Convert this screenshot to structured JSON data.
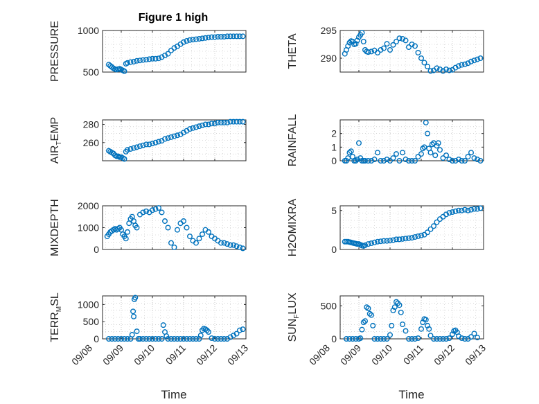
{
  "figure_title": "Figure 1 high",
  "x_axis": {
    "label": "Time",
    "tick_labels": [
      "09/08",
      "09/09",
      "09/10",
      "09/11",
      "09/12",
      "09/13"
    ]
  },
  "colors": {
    "marker": "#0072BD",
    "axis": "#262626",
    "grid": "#b9b9b9"
  },
  "chart_data": [
    {
      "type": "scatter",
      "name": "PRESSURE",
      "ylabel": "PRESSURE",
      "xlim": [
        0.4,
        5.0
      ],
      "ylim": [
        500,
        1000
      ],
      "yticks": [
        500,
        1000
      ],
      "x": [
        0.6,
        0.65,
        0.7,
        0.75,
        0.8,
        0.85,
        0.9,
        0.95,
        1.0,
        1.05,
        1.1,
        1.15,
        1.2,
        1.3,
        1.4,
        1.5,
        1.6,
        1.7,
        1.8,
        1.9,
        2.0,
        2.1,
        2.2,
        2.3,
        2.4,
        2.5,
        2.6,
        2.7,
        2.8,
        2.9,
        3.0,
        3.1,
        3.2,
        3.3,
        3.4,
        3.5,
        3.6,
        3.7,
        3.8,
        3.9,
        4.0,
        4.1,
        4.2,
        4.3,
        4.4,
        4.5,
        4.6,
        4.7,
        4.8,
        4.9
      ],
      "y": [
        590,
        575,
        560,
        545,
        535,
        530,
        535,
        540,
        530,
        520,
        510,
        600,
        610,
        620,
        625,
        635,
        640,
        645,
        650,
        655,
        660,
        660,
        665,
        680,
        700,
        720,
        760,
        790,
        810,
        835,
        860,
        875,
        885,
        890,
        895,
        900,
        905,
        910,
        915,
        920,
        920,
        925,
        925,
        925,
        930,
        930,
        930,
        930,
        930,
        930
      ]
    },
    {
      "type": "scatter",
      "name": "THETA",
      "ylabel": "THETA",
      "xlim": [
        0.4,
        5.0
      ],
      "ylim": [
        287.5,
        295
      ],
      "yticks": [
        290,
        295
      ],
      "x": [
        0.55,
        0.6,
        0.65,
        0.7,
        0.75,
        0.8,
        0.85,
        0.9,
        0.95,
        1.0,
        1.05,
        1.1,
        1.15,
        1.2,
        1.25,
        1.3,
        1.4,
        1.5,
        1.6,
        1.7,
        1.8,
        1.9,
        2.0,
        2.1,
        2.2,
        2.3,
        2.4,
        2.5,
        2.6,
        2.7,
        2.8,
        2.9,
        3.0,
        3.1,
        3.2,
        3.3,
        3.4,
        3.5,
        3.6,
        3.7,
        3.8,
        3.9,
        4.0,
        4.1,
        4.2,
        4.3,
        4.4,
        4.5,
        4.6,
        4.7,
        4.8,
        4.9
      ],
      "y": [
        290.8,
        291.5,
        292.2,
        292.8,
        293.1,
        293.0,
        292.5,
        292.6,
        293.2,
        293.8,
        294.2,
        294.6,
        293.0,
        291.5,
        291.2,
        291.1,
        291.2,
        291.4,
        291.0,
        291.5,
        291.8,
        292.6,
        291.5,
        292.4,
        293.0,
        293.6,
        293.5,
        293.2,
        292.0,
        292.5,
        292.2,
        291.0,
        290.0,
        289.2,
        288.5,
        287.7,
        287.8,
        288.2,
        288.0,
        287.7,
        288.0,
        287.8,
        287.9,
        288.3,
        288.6,
        288.8,
        288.9,
        289.1,
        289.4,
        289.6,
        289.8,
        290.0
      ]
    },
    {
      "type": "scatter",
      "name": "AIR_TEMP",
      "ylabel": "AIR_TEMP",
      "xlim": [
        0.4,
        5.0
      ],
      "ylim": [
        240,
        285
      ],
      "yticks": [
        260,
        280
      ],
      "x": [
        0.6,
        0.65,
        0.7,
        0.75,
        0.8,
        0.85,
        0.9,
        0.95,
        1.0,
        1.05,
        1.1,
        1.15,
        1.2,
        1.3,
        1.4,
        1.5,
        1.6,
        1.7,
        1.8,
        1.9,
        2.0,
        2.1,
        2.2,
        2.3,
        2.4,
        2.5,
        2.6,
        2.7,
        2.8,
        2.9,
        3.0,
        3.1,
        3.2,
        3.3,
        3.4,
        3.5,
        3.6,
        3.7,
        3.8,
        3.9,
        4.0,
        4.1,
        4.2,
        4.3,
        4.4,
        4.5,
        4.6,
        4.7,
        4.8,
        4.9
      ],
      "y": [
        251,
        250,
        249,
        248,
        246,
        245,
        245,
        244,
        244,
        243,
        242,
        250,
        252,
        253,
        254,
        255,
        256,
        257,
        258,
        258,
        259,
        260,
        261,
        262,
        264,
        265,
        266,
        267,
        268,
        269,
        271,
        273,
        275,
        276,
        277,
        278,
        279,
        280,
        280,
        281,
        281,
        282,
        282,
        282,
        282,
        283,
        283,
        283,
        283,
        283
      ]
    },
    {
      "type": "scatter",
      "name": "RAINFALL",
      "ylabel": "RAINFALL",
      "xlim": [
        0.4,
        5.0
      ],
      "ylim": [
        0,
        3
      ],
      "yticks": [
        0,
        1,
        2
      ],
      "x": [
        0.55,
        0.6,
        0.65,
        0.7,
        0.75,
        0.8,
        0.85,
        0.9,
        0.95,
        1.0,
        1.05,
        1.1,
        1.15,
        1.2,
        1.3,
        1.4,
        1.5,
        1.6,
        1.7,
        1.8,
        1.9,
        2.0,
        2.1,
        2.2,
        2.3,
        2.4,
        2.5,
        2.6,
        2.7,
        2.8,
        2.9,
        3.0,
        3.05,
        3.1,
        3.15,
        3.2,
        3.25,
        3.3,
        3.35,
        3.4,
        3.45,
        3.5,
        3.55,
        3.6,
        3.7,
        3.8,
        3.9,
        4.0,
        4.1,
        4.2,
        4.3,
        4.4,
        4.5,
        4.6,
        4.7,
        4.8,
        4.9
      ],
      "y": [
        0,
        0,
        0.2,
        0.6,
        0.7,
        0.3,
        0,
        0,
        0.1,
        1.3,
        0.2,
        0,
        0,
        0,
        0,
        0,
        0.1,
        0.6,
        0,
        0,
        0.1,
        0,
        0.2,
        0.5,
        0,
        0.6,
        0.1,
        0,
        0,
        0,
        0.3,
        0.5,
        0.9,
        1.0,
        2.8,
        2.0,
        0.9,
        0.6,
        1.2,
        1.3,
        0.4,
        1.1,
        1.3,
        0.8,
        0.2,
        0.4,
        0.1,
        0,
        0,
        0.1,
        0,
        0,
        0.3,
        0.6,
        0.2,
        0.1,
        0
      ]
    },
    {
      "type": "scatter",
      "name": "MIXDEPTH",
      "ylabel": "MIXDEPTH",
      "xlim": [
        0.4,
        5.0
      ],
      "ylim": [
        0,
        2000
      ],
      "yticks": [
        0,
        1000,
        2000
      ],
      "x": [
        0.55,
        0.6,
        0.65,
        0.7,
        0.75,
        0.8,
        0.85,
        0.9,
        0.95,
        1.0,
        1.05,
        1.1,
        1.15,
        1.2,
        1.25,
        1.3,
        1.35,
        1.4,
        1.45,
        1.5,
        1.6,
        1.7,
        1.8,
        1.9,
        2.0,
        2.1,
        2.2,
        2.3,
        2.4,
        2.5,
        2.6,
        2.7,
        2.8,
        2.9,
        3.0,
        3.1,
        3.2,
        3.3,
        3.4,
        3.5,
        3.6,
        3.7,
        3.8,
        3.9,
        4.0,
        4.1,
        4.2,
        4.3,
        4.4,
        4.5,
        4.6,
        4.7,
        4.8,
        4.9
      ],
      "y": [
        600,
        700,
        800,
        850,
        900,
        950,
        900,
        950,
        1000,
        900,
        700,
        600,
        500,
        800,
        1200,
        1400,
        1500,
        1300,
        1100,
        1000,
        1600,
        1700,
        1750,
        1700,
        1800,
        1850,
        1900,
        1700,
        1300,
        1000,
        300,
        100,
        900,
        1200,
        1300,
        1000,
        600,
        400,
        300,
        500,
        700,
        900,
        800,
        600,
        500,
        400,
        300,
        300,
        250,
        200,
        200,
        150,
        100,
        50
      ]
    },
    {
      "type": "scatter",
      "name": "H2OMIXRA",
      "ylabel": "H2OMIXRA",
      "xlim": [
        0.4,
        5.0
      ],
      "ylim": [
        0,
        5.6
      ],
      "yticks": [
        0,
        5
      ],
      "x": [
        0.55,
        0.6,
        0.65,
        0.7,
        0.75,
        0.8,
        0.85,
        0.9,
        0.95,
        1.0,
        1.05,
        1.1,
        1.15,
        1.2,
        1.3,
        1.4,
        1.5,
        1.6,
        1.7,
        1.8,
        1.9,
        2.0,
        2.1,
        2.2,
        2.3,
        2.4,
        2.5,
        2.6,
        2.7,
        2.8,
        2.9,
        3.0,
        3.1,
        3.2,
        3.3,
        3.4,
        3.5,
        3.6,
        3.7,
        3.8,
        3.9,
        4.0,
        4.1,
        4.2,
        4.3,
        4.4,
        4.5,
        4.6,
        4.7,
        4.8,
        4.9
      ],
      "y": [
        1.0,
        1.0,
        1.0,
        0.95,
        0.9,
        0.85,
        0.8,
        0.75,
        0.7,
        0.7,
        0.6,
        0.5,
        0.45,
        0.55,
        0.7,
        0.8,
        0.9,
        1.0,
        1.05,
        1.1,
        1.1,
        1.15,
        1.2,
        1.3,
        1.3,
        1.35,
        1.4,
        1.45,
        1.5,
        1.6,
        1.7,
        1.8,
        1.9,
        2.2,
        2.6,
        3.0,
        3.5,
        3.9,
        4.2,
        4.5,
        4.7,
        4.8,
        4.9,
        5.0,
        5.0,
        5.1,
        5.0,
        5.1,
        5.2,
        5.2,
        5.3
      ]
    },
    {
      "type": "scatter",
      "name": "TERR_MSL",
      "ylabel": "TERR_MSL",
      "xlim": [
        0.4,
        5.0
      ],
      "ylim": [
        0,
        1250
      ],
      "yticks": [
        0,
        500,
        1000
      ],
      "x": [
        0.6,
        0.7,
        0.8,
        0.9,
        1.0,
        1.1,
        1.2,
        1.3,
        1.35,
        1.38,
        1.4,
        1.42,
        1.45,
        1.5,
        1.55,
        1.6,
        1.7,
        1.8,
        1.9,
        2.0,
        2.1,
        2.2,
        2.3,
        2.35,
        2.4,
        2.45,
        2.5,
        2.6,
        2.7,
        2.8,
        2.9,
        3.0,
        3.1,
        3.2,
        3.3,
        3.4,
        3.5,
        3.55,
        3.6,
        3.65,
        3.7,
        3.75,
        3.8,
        3.9,
        4.0,
        4.1,
        4.2,
        4.3,
        4.4,
        4.5,
        4.6,
        4.7,
        4.8,
        4.9
      ],
      "y": [
        0,
        0,
        0,
        0,
        0,
        0,
        0,
        0,
        120,
        800,
        650,
        1150,
        1200,
        220,
        0,
        0,
        0,
        0,
        0,
        0,
        0,
        0,
        0,
        400,
        200,
        80,
        0,
        0,
        0,
        0,
        0,
        0,
        0,
        0,
        0,
        0,
        0,
        100,
        250,
        300,
        280,
        250,
        200,
        20,
        0,
        0,
        0,
        0,
        0,
        50,
        100,
        150,
        250,
        280
      ]
    },
    {
      "type": "scatter",
      "name": "SUN_FLUX",
      "ylabel": "SUN_FLUX",
      "xlim": [
        0.4,
        5.0
      ],
      "ylim": [
        0,
        650
      ],
      "yticks": [
        0,
        500
      ],
      "x": [
        0.6,
        0.7,
        0.8,
        0.9,
        1.0,
        1.05,
        1.1,
        1.15,
        1.2,
        1.25,
        1.3,
        1.35,
        1.4,
        1.45,
        1.5,
        1.6,
        1.7,
        1.8,
        1.9,
        2.0,
        2.05,
        2.1,
        2.15,
        2.2,
        2.25,
        2.3,
        2.35,
        2.4,
        2.5,
        2.6,
        2.7,
        2.8,
        2.9,
        3.0,
        3.05,
        3.1,
        3.15,
        3.2,
        3.25,
        3.3,
        3.4,
        3.5,
        3.6,
        3.7,
        3.8,
        3.9,
        4.0,
        4.05,
        4.1,
        4.15,
        4.2,
        4.3,
        4.4,
        4.5,
        4.6,
        4.7,
        4.8
      ],
      "y": [
        0,
        0,
        0,
        0,
        0,
        10,
        140,
        250,
        270,
        480,
        460,
        380,
        360,
        200,
        0,
        0,
        0,
        0,
        0,
        60,
        200,
        430,
        480,
        560,
        540,
        510,
        400,
        220,
        120,
        0,
        0,
        0,
        10,
        150,
        250,
        300,
        290,
        200,
        150,
        50,
        0,
        0,
        0,
        0,
        0,
        10,
        70,
        120,
        130,
        100,
        40,
        10,
        0,
        0,
        30,
        80,
        20
      ]
    }
  ]
}
